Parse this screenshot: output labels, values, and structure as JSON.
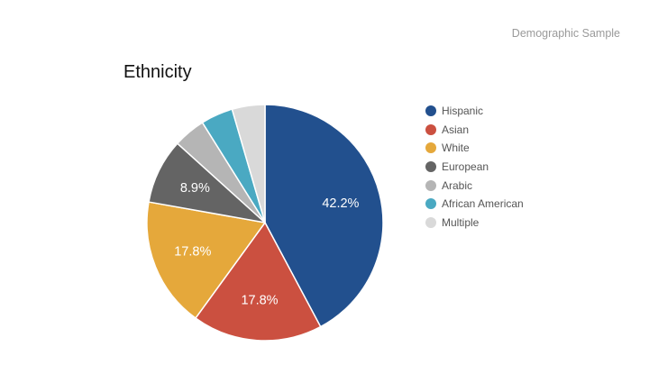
{
  "header": {
    "label": "Demographic Sample"
  },
  "chart_data": {
    "type": "pie",
    "title": "Ethnicity",
    "legend_position": "right",
    "start_angle_deg": 0,
    "direction": "clockwise",
    "slices": [
      {
        "name": "Hispanic",
        "value": 42.2,
        "label": "42.2%",
        "color": "#22508e"
      },
      {
        "name": "Asian",
        "value": 17.8,
        "label": "17.8%",
        "color": "#cb5040"
      },
      {
        "name": "White",
        "value": 17.8,
        "label": "17.8%",
        "color": "#e5a83b"
      },
      {
        "name": "European",
        "value": 8.9,
        "label": "8.9%",
        "color": "#646464"
      },
      {
        "name": "Arabic",
        "value": 4.4,
        "label": "",
        "color": "#b5b5b5"
      },
      {
        "name": "African American",
        "value": 4.4,
        "label": "",
        "color": "#4aa9c2"
      },
      {
        "name": "Multiple",
        "value": 4.5,
        "label": "",
        "color": "#d9d9d9"
      }
    ]
  }
}
